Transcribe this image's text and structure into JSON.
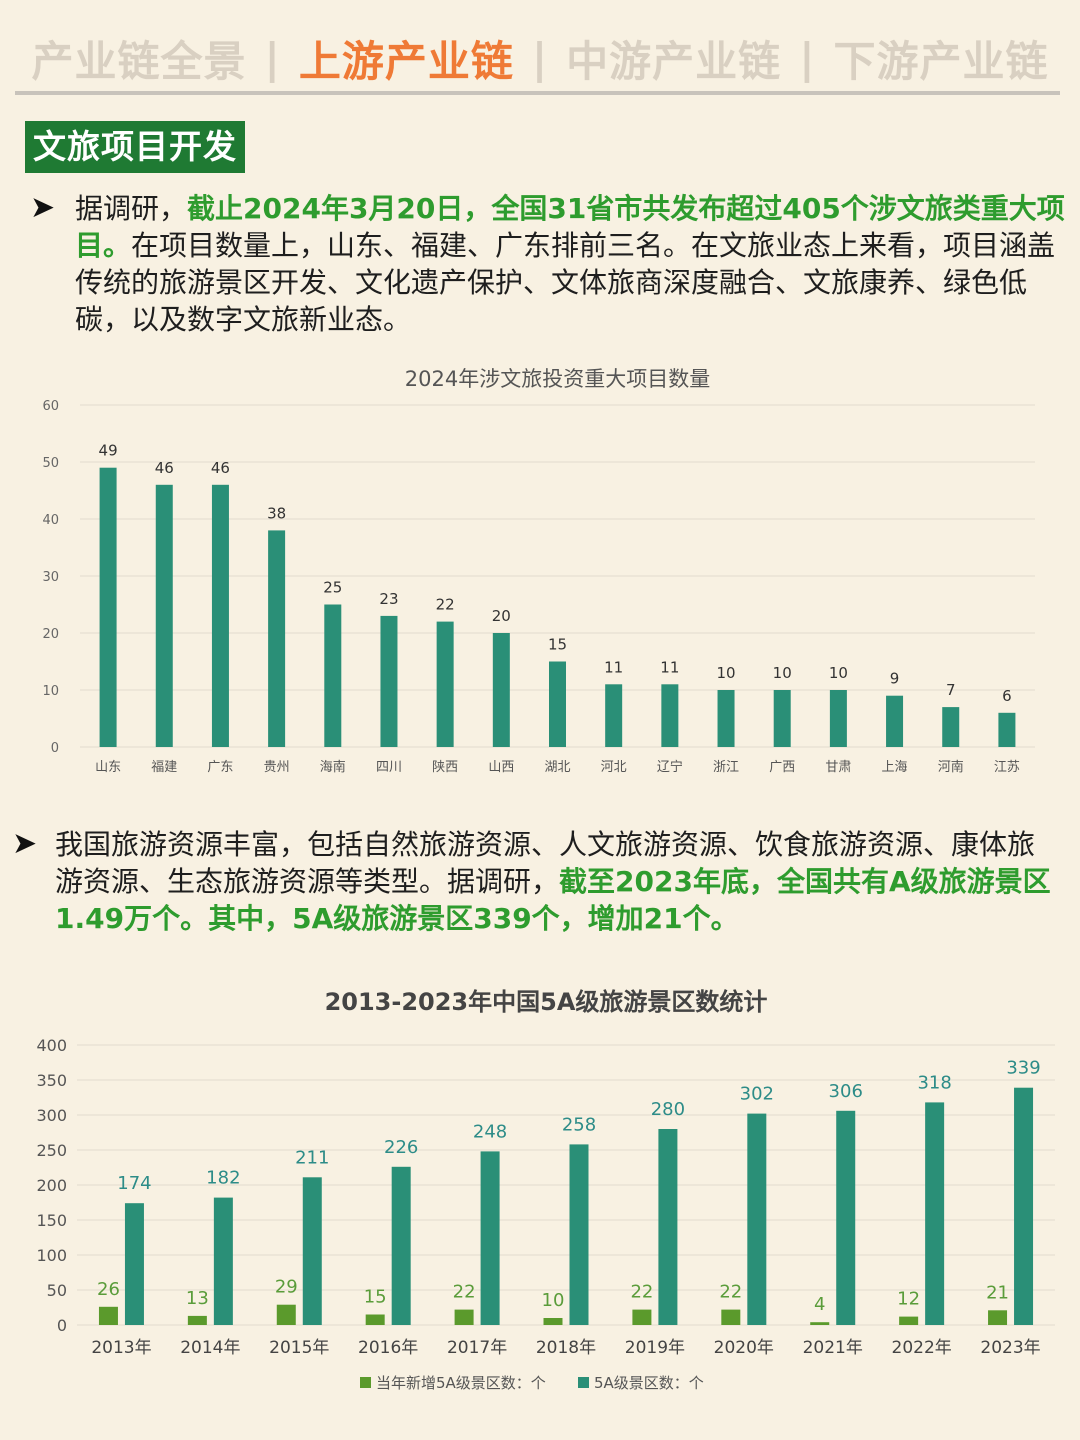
{
  "nav": {
    "tabs": [
      {
        "label": "产业链全景",
        "active": false
      },
      {
        "label": "上游产业链",
        "active": true
      },
      {
        "label": "中游产业链",
        "active": false
      },
      {
        "label": "下游产业链",
        "active": false
      }
    ],
    "separator": "|"
  },
  "section": {
    "title": "文旅项目开发"
  },
  "paragraph1": {
    "bullet": "➤",
    "lead": "据调研，",
    "highlight": "截止2024年3月20日，全国31省市共发布超过405个涉文旅类重大项目。",
    "rest": "在项目数量上，山东、福建、广东排前三名。在文旅业态上来看，项目涵盖传统的旅游景区开发、文化遗产保护、文体旅商深度融合、文旅康养、绿色低碳，以及数字文旅新业态。"
  },
  "paragraph2": {
    "bullet": "➤",
    "lead": "我国旅游资源丰富，包括自然旅游资源、人文旅游资源、饮食旅游资源、康体旅游资源、生态旅游资源等类型。据调研，",
    "highlight": "截至2023年底，全国共有A级旅游景区1.49万个。其中，5A级旅游景区339个，增加21个。"
  },
  "colors": {
    "teal": "#2a8f77",
    "green": "#5b9a2c",
    "label_teal": "#2d8c88",
    "label_green": "#5a9c3a",
    "highlight": "#2e9c2e",
    "accent": "#ef7a36",
    "section_bg": "#1f7a33"
  },
  "chart_data": [
    {
      "type": "bar",
      "title": "2024年涉文旅投资重大项目数量",
      "categories": [
        "山东",
        "福建",
        "广东",
        "贵州",
        "海南",
        "四川",
        "陕西",
        "山西",
        "湖北",
        "河北",
        "辽宁",
        "浙江",
        "广西",
        "甘肃",
        "上海",
        "河南",
        "江苏"
      ],
      "values": [
        49,
        46,
        46,
        38,
        25,
        23,
        22,
        20,
        15,
        11,
        11,
        10,
        10,
        10,
        9,
        7,
        6
      ],
      "ylim": [
        0,
        60
      ],
      "yticks": [
        0,
        10,
        20,
        30,
        40,
        50,
        60
      ],
      "grid": true,
      "data_labels": true
    },
    {
      "type": "bar",
      "title": "2013-2023年中国5A级旅游景区数统计",
      "categories": [
        "2013年",
        "2014年",
        "2015年",
        "2016年",
        "2017年",
        "2018年",
        "2019年",
        "2020年",
        "2021年",
        "2022年",
        "2023年"
      ],
      "series": [
        {
          "name": "当年新增5A级景区数：个",
          "values": [
            26,
            13,
            29,
            15,
            22,
            10,
            22,
            22,
            4,
            12,
            21
          ]
        },
        {
          "name": "5A级景区数：个",
          "values": [
            174,
            182,
            211,
            226,
            248,
            258,
            280,
            302,
            306,
            318,
            339
          ]
        }
      ],
      "ylim": [
        0,
        400
      ],
      "yticks": [
        0,
        50,
        100,
        150,
        200,
        250,
        300,
        350,
        400
      ],
      "grid": true,
      "legend": "bottom",
      "data_labels": true
    }
  ]
}
